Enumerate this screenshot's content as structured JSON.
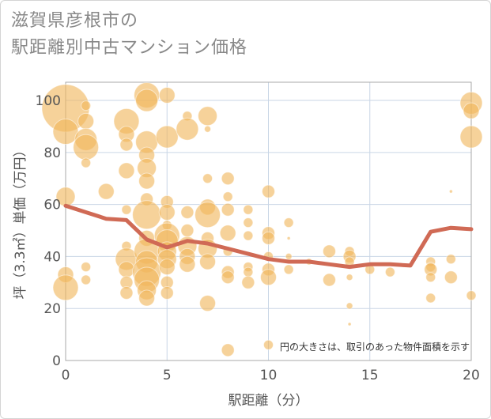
{
  "title_lines": [
    "滋賀県彦根市の",
    "駅距離別中古マンション価格"
  ],
  "chart_data": {
    "type": "scatter",
    "title": "滋賀県彦根市の駅距離別中古マンション価格",
    "xlabel": "駅距離（分）",
    "ylabel": "坪（3.3㎡）単価（万円）",
    "xlim": [
      0,
      20
    ],
    "ylim": [
      0,
      107
    ],
    "xticks": [
      0,
      5,
      10,
      15,
      20
    ],
    "yticks": [
      0,
      20,
      40,
      60,
      80,
      100
    ],
    "grid": true,
    "annotation": "円の大きさは、取引のあった物件面積を示す",
    "bubble_color": "#F0B65C",
    "line_color": "#D06A55",
    "points": [
      {
        "x": 0,
        "y": 97,
        "s": 30
      },
      {
        "x": 0,
        "y": 88,
        "s": 16
      },
      {
        "x": 0,
        "y": 63,
        "s": 12
      },
      {
        "x": 0,
        "y": 33,
        "s": 10
      },
      {
        "x": 0,
        "y": 28,
        "s": 16
      },
      {
        "x": 1,
        "y": 98,
        "s": 6
      },
      {
        "x": 1,
        "y": 92,
        "s": 10
      },
      {
        "x": 1,
        "y": 85,
        "s": 14
      },
      {
        "x": 1,
        "y": 82,
        "s": 16
      },
      {
        "x": 1,
        "y": 76,
        "s": 6
      },
      {
        "x": 1,
        "y": 36,
        "s": 6
      },
      {
        "x": 1,
        "y": 31,
        "s": 6
      },
      {
        "x": 2,
        "y": 65,
        "s": 10
      },
      {
        "x": 3,
        "y": 92,
        "s": 16
      },
      {
        "x": 3,
        "y": 87,
        "s": 10
      },
      {
        "x": 3,
        "y": 83,
        "s": 8
      },
      {
        "x": 3,
        "y": 73,
        "s": 10
      },
      {
        "x": 3,
        "y": 58,
        "s": 6
      },
      {
        "x": 3,
        "y": 44,
        "s": 6
      },
      {
        "x": 3,
        "y": 39,
        "s": 14
      },
      {
        "x": 3,
        "y": 35,
        "s": 10
      },
      {
        "x": 3,
        "y": 30,
        "s": 8
      },
      {
        "x": 3,
        "y": 26,
        "s": 8
      },
      {
        "x": 4,
        "y": 102,
        "s": 16
      },
      {
        "x": 4,
        "y": 100,
        "s": 14
      },
      {
        "x": 4,
        "y": 84,
        "s": 14
      },
      {
        "x": 4,
        "y": 79,
        "s": 10
      },
      {
        "x": 4,
        "y": 74,
        "s": 12
      },
      {
        "x": 4,
        "y": 69,
        "s": 10
      },
      {
        "x": 4,
        "y": 62,
        "s": 8
      },
      {
        "x": 4,
        "y": 56,
        "s": 18
      },
      {
        "x": 4,
        "y": 47,
        "s": 10
      },
      {
        "x": 4,
        "y": 42,
        "s": 16
      },
      {
        "x": 4,
        "y": 38,
        "s": 14
      },
      {
        "x": 4,
        "y": 34,
        "s": 18
      },
      {
        "x": 4,
        "y": 31,
        "s": 16
      },
      {
        "x": 4,
        "y": 27,
        "s": 12
      },
      {
        "x": 4,
        "y": 24,
        "s": 10
      },
      {
        "x": 5,
        "y": 102,
        "s": 10
      },
      {
        "x": 5,
        "y": 86,
        "s": 14
      },
      {
        "x": 5,
        "y": 61,
        "s": 8
      },
      {
        "x": 5,
        "y": 57,
        "s": 10
      },
      {
        "x": 5,
        "y": 52,
        "s": 6
      },
      {
        "x": 5,
        "y": 48,
        "s": 16
      },
      {
        "x": 5,
        "y": 46,
        "s": 14
      },
      {
        "x": 5,
        "y": 42,
        "s": 12
      },
      {
        "x": 5,
        "y": 39,
        "s": 12
      },
      {
        "x": 5,
        "y": 36,
        "s": 10
      },
      {
        "x": 5,
        "y": 30,
        "s": 8
      },
      {
        "x": 5,
        "y": 26,
        "s": 8
      },
      {
        "x": 6,
        "y": 94,
        "s": 6
      },
      {
        "x": 6,
        "y": 89,
        "s": 14
      },
      {
        "x": 6,
        "y": 57,
        "s": 8
      },
      {
        "x": 6,
        "y": 50,
        "s": 8
      },
      {
        "x": 6,
        "y": 44,
        "s": 12
      },
      {
        "x": 6,
        "y": 40,
        "s": 10
      },
      {
        "x": 6,
        "y": 37,
        "s": 10
      },
      {
        "x": 7,
        "y": 94,
        "s": 12
      },
      {
        "x": 7,
        "y": 89,
        "s": 4
      },
      {
        "x": 7,
        "y": 70,
        "s": 6
      },
      {
        "x": 7,
        "y": 59,
        "s": 10
      },
      {
        "x": 7,
        "y": 56,
        "s": 16
      },
      {
        "x": 7,
        "y": 47,
        "s": 8
      },
      {
        "x": 7,
        "y": 43,
        "s": 12
      },
      {
        "x": 7,
        "y": 38,
        "s": 10
      },
      {
        "x": 7,
        "y": 22,
        "s": 10
      },
      {
        "x": 8,
        "y": 70,
        "s": 8
      },
      {
        "x": 8,
        "y": 63,
        "s": 6
      },
      {
        "x": 8,
        "y": 58,
        "s": 8
      },
      {
        "x": 8,
        "y": 49,
        "s": 10
      },
      {
        "x": 8,
        "y": 42,
        "s": 6
      },
      {
        "x": 8,
        "y": 34,
        "s": 8
      },
      {
        "x": 8,
        "y": 32,
        "s": 8
      },
      {
        "x": 8,
        "y": 4,
        "s": 8
      },
      {
        "x": 9,
        "y": 58,
        "s": 6
      },
      {
        "x": 9,
        "y": 53,
        "s": 6
      },
      {
        "x": 9,
        "y": 48,
        "s": 6
      },
      {
        "x": 9,
        "y": 36,
        "s": 6
      },
      {
        "x": 9,
        "y": 34,
        "s": 6
      },
      {
        "x": 9,
        "y": 30,
        "s": 8
      },
      {
        "x": 10,
        "y": 65,
        "s": 8
      },
      {
        "x": 10,
        "y": 49,
        "s": 8
      },
      {
        "x": 10,
        "y": 47,
        "s": 8
      },
      {
        "x": 10,
        "y": 40,
        "s": 6
      },
      {
        "x": 10,
        "y": 35,
        "s": 8
      },
      {
        "x": 10,
        "y": 32,
        "s": 10
      },
      {
        "x": 10,
        "y": 6,
        "s": 6
      },
      {
        "x": 11,
        "y": 53,
        "s": 6
      },
      {
        "x": 11,
        "y": 47,
        "s": 2
      },
      {
        "x": 11,
        "y": 40,
        "s": 4
      },
      {
        "x": 11,
        "y": 35,
        "s": 6
      },
      {
        "x": 12,
        "y": 38,
        "s": 4
      },
      {
        "x": 13,
        "y": 42,
        "s": 8
      },
      {
        "x": 13,
        "y": 31,
        "s": 8
      },
      {
        "x": 14,
        "y": 42,
        "s": 6
      },
      {
        "x": 14,
        "y": 40,
        "s": 8
      },
      {
        "x": 14,
        "y": 38,
        "s": 6
      },
      {
        "x": 14,
        "y": 32,
        "s": 4
      },
      {
        "x": 14,
        "y": 21,
        "s": 4
      },
      {
        "x": 14,
        "y": 14,
        "s": 2
      },
      {
        "x": 15,
        "y": 35,
        "s": 6
      },
      {
        "x": 16,
        "y": 34,
        "s": 6
      },
      {
        "x": 18,
        "y": 38,
        "s": 6
      },
      {
        "x": 18,
        "y": 36,
        "s": 6
      },
      {
        "x": 18,
        "y": 35,
        "s": 8
      },
      {
        "x": 18,
        "y": 32,
        "s": 6
      },
      {
        "x": 18,
        "y": 24,
        "s": 6
      },
      {
        "x": 19,
        "y": 65,
        "s": 2
      },
      {
        "x": 19,
        "y": 39,
        "s": 6
      },
      {
        "x": 19,
        "y": 32,
        "s": 8
      },
      {
        "x": 20,
        "y": 99,
        "s": 14
      },
      {
        "x": 20,
        "y": 96,
        "s": 10
      },
      {
        "x": 20,
        "y": 86,
        "s": 14
      },
      {
        "x": 20,
        "y": 25,
        "s": 6
      }
    ],
    "trend_line": {
      "x": [
        0,
        1,
        2,
        3,
        4,
        5,
        6,
        7,
        8,
        9,
        10,
        11,
        12,
        13,
        14,
        15,
        16,
        17,
        18,
        19,
        20
      ],
      "y": [
        59.5,
        57,
        54.5,
        54,
        46.5,
        43.5,
        46,
        45,
        43,
        41,
        39,
        38,
        38,
        37,
        36,
        37,
        37,
        36.5,
        49.5,
        51,
        50.5
      ]
    }
  }
}
